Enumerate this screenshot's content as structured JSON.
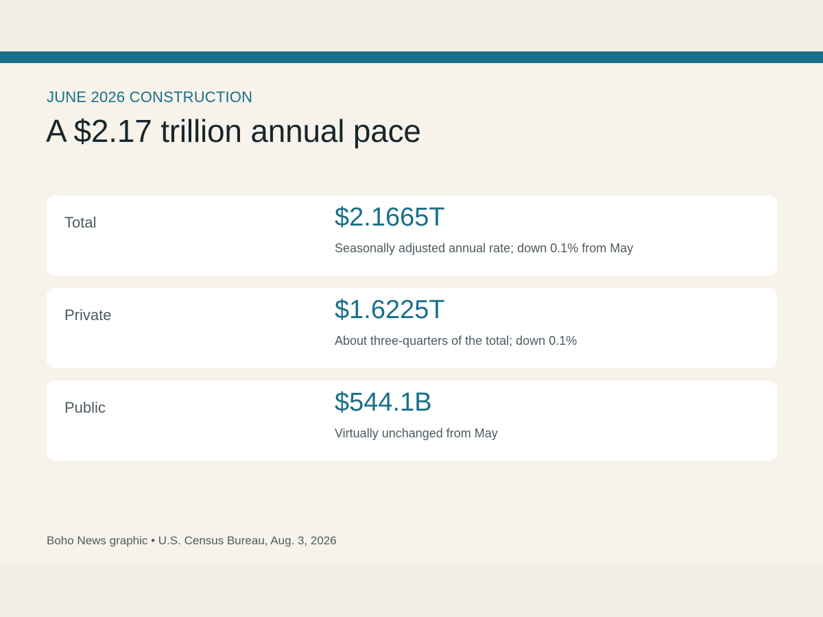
{
  "colors": {
    "accent": "#196f89",
    "headline": "#17262d",
    "muted_text": "#4d5b61",
    "page_background": "#f2ede6",
    "card_background": "#f7f3ea",
    "row_background": "#ffffff"
  },
  "kicker": "JUNE 2026 CONSTRUCTION",
  "headline": "A $2.17 trillion annual pace",
  "stats": [
    {
      "label": "Total",
      "value": "$2.1665T",
      "note": "Seasonally adjusted annual rate; down 0.1% from May"
    },
    {
      "label": "Private",
      "value": "$1.6225T",
      "note": "About three-quarters of the total; down 0.1%"
    },
    {
      "label": "Public",
      "value": "$544.1B",
      "note": "Virtually unchanged from May"
    }
  ],
  "footer": "Boho News graphic • U.S. Census Bureau, Aug. 3, 2026"
}
